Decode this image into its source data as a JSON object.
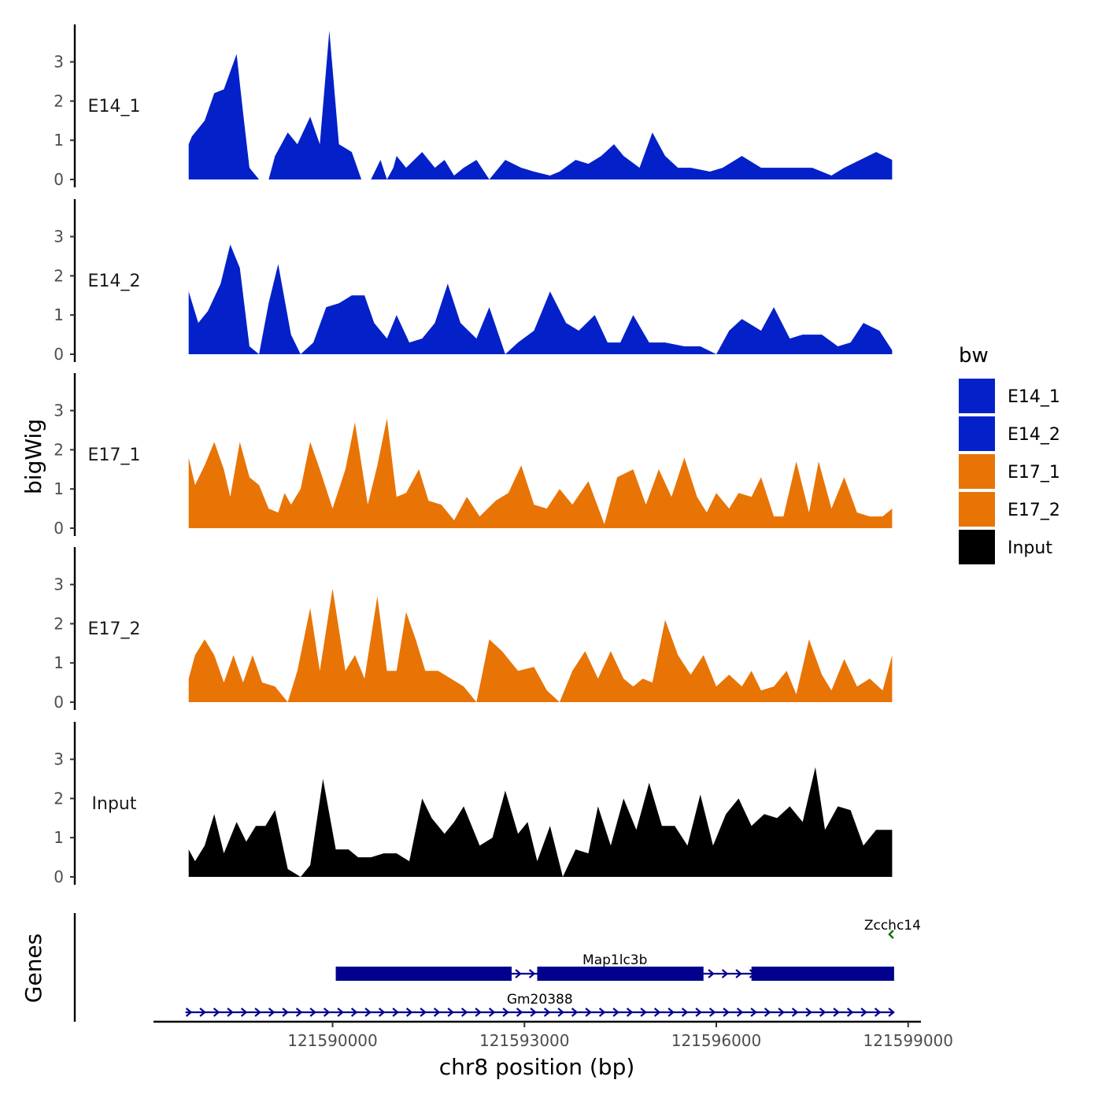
{
  "chart_data": {
    "type": "area",
    "title": "",
    "xlabel": "chr8 position (bp)",
    "ylabel": "bigWig",
    "xlim": [
      121587200,
      121599200
    ],
    "ylim": [
      0,
      3.9
    ],
    "x_ticks": [
      121590000,
      121593000,
      121596000,
      121599000
    ],
    "x_tick_labels": [
      "121590000",
      "121593000",
      "121596000",
      "121599000"
    ],
    "y_ticks": [
      0,
      1,
      2,
      3
    ],
    "y_tick_labels": [
      "0",
      "1",
      "2",
      "3"
    ],
    "gene_panel_label": "Genes",
    "legend": {
      "title": "bw",
      "entries": [
        {
          "name": "E14_1",
          "color": "#0320C9"
        },
        {
          "name": "E14_2",
          "color": "#0320C9"
        },
        {
          "name": "E17_1",
          "color": "#E87406"
        },
        {
          "name": "E17_2",
          "color": "#E87406"
        },
        {
          "name": "Input",
          "color": "#000000"
        }
      ]
    },
    "series": [
      {
        "name": "E14_1",
        "color": "#0320C9",
        "x": [
          121587750,
          121587800,
          121588000,
          121588150,
          121588300,
          121588500,
          121588600,
          121588700,
          121588850,
          121589000,
          121589100,
          121589200,
          121589300,
          121589450,
          121589650,
          121589800,
          121589950,
          121590100,
          121590300,
          121590450,
          121590600,
          121590750,
          121590850,
          121590950,
          121591000,
          121591150,
          121591400,
          121591600,
          121591750,
          121591900,
          121592050,
          121592250,
          121592450,
          121592700,
          121592950,
          121593150,
          121593400,
          121593550,
          121593800,
          121594000,
          121594200,
          121594400,
          121594550,
          121594800,
          121595000,
          121595200,
          121595400,
          121595600,
          121595900,
          121596100,
          121596400,
          121596700,
          121597000,
          121597300,
          121597500,
          121597800,
          121598000,
          121598250,
          121598500,
          121598750
        ],
        "y": [
          0.9,
          1.1,
          1.5,
          2.2,
          2.3,
          3.2,
          1.7,
          0.3,
          0,
          0,
          0.6,
          0.9,
          1.2,
          0.9,
          1.6,
          0.9,
          3.8,
          0.9,
          0.7,
          0,
          0,
          0.5,
          0,
          0.3,
          0.6,
          0.3,
          0.7,
          0.3,
          0.5,
          0.1,
          0.3,
          0.5,
          0,
          0.5,
          0.3,
          0.2,
          0.1,
          0.2,
          0.5,
          0.4,
          0.6,
          0.9,
          0.6,
          0.3,
          1.2,
          0.6,
          0.3,
          0.3,
          0.2,
          0.3,
          0.6,
          0.3,
          0.3,
          0.3,
          0.3,
          0.1,
          0.3,
          0.5,
          0.7,
          0.5
        ],
        "label": "E14_1"
      },
      {
        "name": "E14_2",
        "color": "#0320C9",
        "x": [
          121587750,
          121587900,
          121588050,
          121588250,
          121588400,
          121588550,
          121588700,
          121588850,
          121589000,
          121589150,
          121589350,
          121589500,
          121589700,
          121589900,
          121590100,
          121590300,
          121590500,
          121590650,
          121590850,
          121591000,
          121591200,
          121591400,
          121591600,
          121591800,
          121592000,
          121592250,
          121592450,
          121592700,
          121592900,
          121593150,
          121593400,
          121593650,
          121593850,
          121594100,
          121594300,
          121594500,
          121594700,
          121594950,
          121595200,
          121595500,
          121595750,
          121596000,
          121596200,
          121596400,
          121596700,
          121596900,
          121597150,
          121597350,
          121597650,
          121597900,
          121598100,
          121598300,
          121598550,
          121598750
        ],
        "y": [
          1.6,
          0.8,
          1.1,
          1.8,
          2.8,
          2.2,
          0.2,
          0,
          1.3,
          2.3,
          0.5,
          0,
          0.3,
          1.2,
          1.3,
          1.5,
          1.5,
          0.8,
          0.4,
          1.0,
          0.3,
          0.4,
          0.8,
          1.8,
          0.8,
          0.4,
          1.2,
          0,
          0.3,
          0.6,
          1.6,
          0.8,
          0.6,
          1.0,
          0.3,
          0.3,
          1.0,
          0.3,
          0.3,
          0.2,
          0.2,
          0,
          0.6,
          0.9,
          0.6,
          1.2,
          0.4,
          0.5,
          0.5,
          0.2,
          0.3,
          0.8,
          0.6,
          0.1
        ],
        "label": "E14_2"
      },
      {
        "name": "E17_1",
        "color": "#E87406",
        "x": [
          121587750,
          121587850,
          121588000,
          121588150,
          121588300,
          121588400,
          121588550,
          121588700,
          121588850,
          121589000,
          121589150,
          121589250,
          121589350,
          121589500,
          121589650,
          121589800,
          121590000,
          121590200,
          121590350,
          121590550,
          121590700,
          121590850,
          121591000,
          121591150,
          121591350,
          121591500,
          121591700,
          121591900,
          121592100,
          121592300,
          121592550,
          121592750,
          121592950,
          121593150,
          121593350,
          121593550,
          121593750,
          121594000,
          121594250,
          121594450,
          121594700,
          121594900,
          121595100,
          121595300,
          121595500,
          121595700,
          121595850,
          121596000,
          121596200,
          121596350,
          121596550,
          121596700,
          121596900,
          121597050,
          121597250,
          121597450,
          121597600,
          121597800,
          121598000,
          121598200,
          121598400,
          121598600,
          121598750
        ],
        "y": [
          1.8,
          1.1,
          1.6,
          2.2,
          1.5,
          0.8,
          2.2,
          1.3,
          1.1,
          0.5,
          0.4,
          0.9,
          0.6,
          1.0,
          2.2,
          1.5,
          0.5,
          1.5,
          2.7,
          0.6,
          1.6,
          2.8,
          0.8,
          0.9,
          1.5,
          0.7,
          0.6,
          0.2,
          0.8,
          0.3,
          0.7,
          0.9,
          1.6,
          0.6,
          0.5,
          1.0,
          0.6,
          1.2,
          0.1,
          1.3,
          1.5,
          0.6,
          1.5,
          0.8,
          1.8,
          0.8,
          0.4,
          0.9,
          0.5,
          0.9,
          0.8,
          1.3,
          0.3,
          0.3,
          1.7,
          0.4,
          1.7,
          0.5,
          1.3,
          0.4,
          0.3,
          0.3,
          0.5
        ],
        "label": "E17_1"
      },
      {
        "name": "E17_2",
        "color": "#E87406",
        "x": [
          121587750,
          121587850,
          121588000,
          121588150,
          121588300,
          121588450,
          121588600,
          121588750,
          121588900,
          121589100,
          121589300,
          121589450,
          121589650,
          121589800,
          121590000,
          121590200,
          121590350,
          121590500,
          121590700,
          121590850,
          121591000,
          121591150,
          121591300,
          121591450,
          121591650,
          121591850,
          121592050,
          121592250,
          121592450,
          121592650,
          121592900,
          121593150,
          121593350,
          121593550,
          121593750,
          121593950,
          121594150,
          121594350,
          121594550,
          121594700,
          121594850,
          121595000,
          121595200,
          121595400,
          121595600,
          121595800,
          121596000,
          121596200,
          121596400,
          121596550,
          121596700,
          121596900,
          121597100,
          121597250,
          121597450,
          121597650,
          121597800,
          121598000,
          121598200,
          121598400,
          121598600,
          121598750
        ],
        "y": [
          0.6,
          1.2,
          1.6,
          1.2,
          0.5,
          1.2,
          0.5,
          1.2,
          0.5,
          0.4,
          0,
          0.8,
          2.4,
          0.8,
          2.9,
          0.8,
          1.2,
          0.6,
          2.7,
          0.8,
          0.8,
          2.3,
          1.6,
          0.8,
          0.8,
          0.6,
          0.4,
          0,
          1.6,
          1.3,
          0.8,
          0.9,
          0.3,
          0,
          0.8,
          1.3,
          0.6,
          1.3,
          0.6,
          0.4,
          0.6,
          0.5,
          2.1,
          1.2,
          0.7,
          1.2,
          0.4,
          0.7,
          0.4,
          0.8,
          0.3,
          0.4,
          0.8,
          0.2,
          1.6,
          0.7,
          0.3,
          1.1,
          0.4,
          0.6,
          0.3,
          1.2
        ],
        "label": "E17_2"
      },
      {
        "name": "Input",
        "color": "#000000",
        "x": [
          121587750,
          121587850,
          121588000,
          121588150,
          121588300,
          121588500,
          121588650,
          121588800,
          121588950,
          121589100,
          121589300,
          121589500,
          121589650,
          121589850,
          121590050,
          121590250,
          121590400,
          121590600,
          121590800,
          121591000,
          121591200,
          121591400,
          121591550,
          121591750,
          121591900,
          121592050,
          121592300,
          121592500,
          121592700,
          121592900,
          121593050,
          121593200,
          121593400,
          121593600,
          121593800,
          121594000,
          121594150,
          121594350,
          121594550,
          121594750,
          121594950,
          121595150,
          121595350,
          121595550,
          121595750,
          121595950,
          121596150,
          121596350,
          121596550,
          121596750,
          121596950,
          121597150,
          121597350,
          121597550,
          121597700,
          121597900,
          121598100,
          121598300,
          121598500,
          121598750
        ],
        "y": [
          0.7,
          0.4,
          0.8,
          1.6,
          0.6,
          1.4,
          0.9,
          1.3,
          1.3,
          1.7,
          0.2,
          0,
          0.3,
          2.5,
          0.7,
          0.7,
          0.5,
          0.5,
          0.6,
          0.6,
          0.4,
          2.0,
          1.5,
          1.1,
          1.4,
          1.8,
          0.8,
          1.0,
          2.2,
          1.1,
          1.4,
          0.4,
          1.3,
          0,
          0.7,
          0.6,
          1.8,
          0.8,
          2.0,
          1.2,
          2.4,
          1.3,
          1.3,
          0.8,
          2.1,
          0.8,
          1.6,
          2.0,
          1.3,
          1.6,
          1.5,
          1.8,
          1.4,
          2.8,
          1.2,
          1.8,
          1.7,
          0.8,
          1.2,
          1.2
        ],
        "label": "Input"
      }
    ],
    "genes": [
      {
        "name": "Zcchc14",
        "start": 121598700,
        "end": 121598780,
        "strand": "-",
        "color": "#137313"
      },
      {
        "name": "Map1lc3b",
        "start": 121590050,
        "end": 121598780,
        "strand": "+",
        "color": "#01018E",
        "exons": [
          [
            121590050,
            121592800
          ],
          [
            121593200,
            121595800
          ],
          [
            121596550,
            121598780
          ]
        ]
      },
      {
        "name": "Gm20388",
        "start": 121587700,
        "end": 121598780,
        "strand": "+",
        "color": "#01018E",
        "exons": []
      }
    ]
  }
}
